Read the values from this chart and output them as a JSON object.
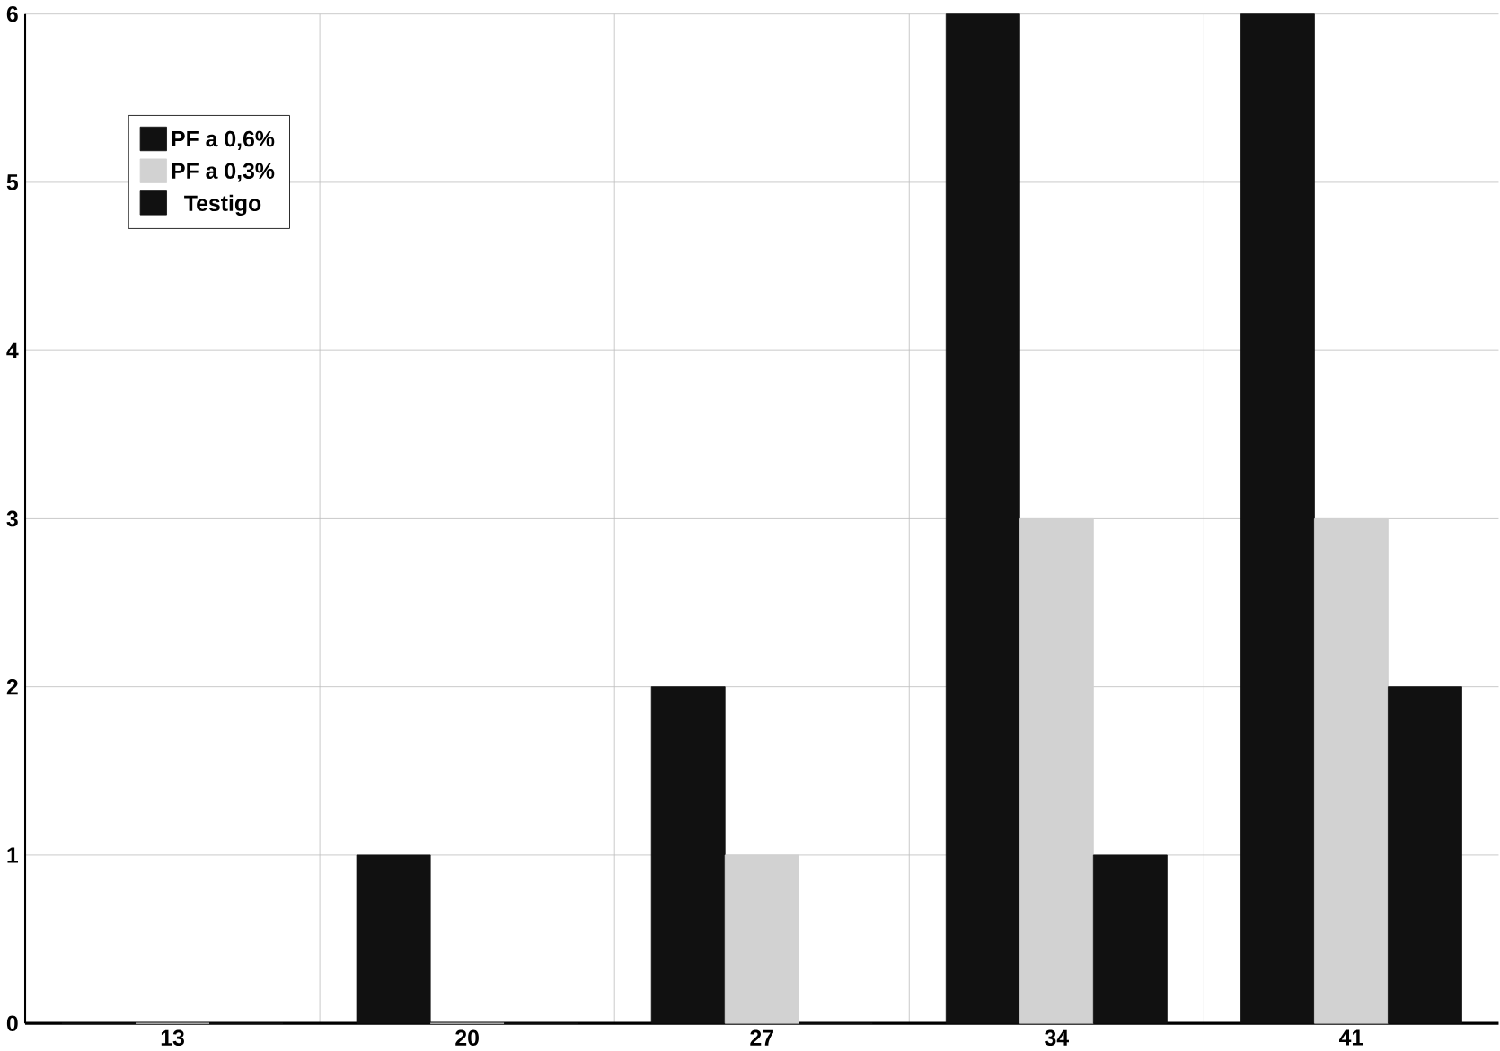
{
  "chart_data": {
    "type": "bar",
    "categories": [
      "13",
      "20",
      "27",
      "34",
      "41"
    ],
    "series": [
      {
        "name": "PF a 0,6%",
        "color": "#111111",
        "values": [
          0,
          1,
          2,
          6,
          6
        ]
      },
      {
        "name": "PF a 0,3%",
        "color": "#d2d2d2",
        "values": [
          0,
          0,
          1,
          3,
          3
        ]
      },
      {
        "name": "Testigo",
        "color": "#111111",
        "values": [
          0,
          0,
          0,
          1,
          2
        ]
      }
    ],
    "ylim": [
      0,
      6
    ],
    "yticks": [
      0,
      1,
      2,
      3,
      4,
      5,
      6
    ],
    "grid": true,
    "legend": "top left"
  }
}
